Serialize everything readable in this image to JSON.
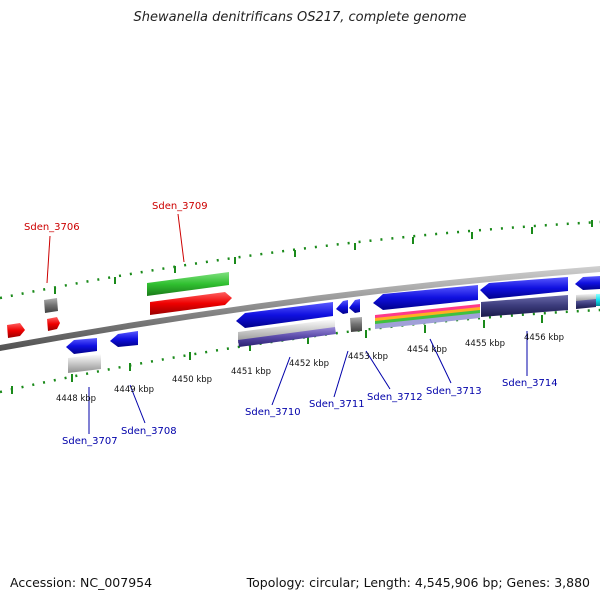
{
  "title": "Shewanella denitrificans OS217, complete genome",
  "footer": {
    "accession": "Accession: NC_007954",
    "summary": "Topology: circular; Length: 4,545,906 bp; Genes: 3,880"
  },
  "colors": {
    "forward_label": "#cc0000",
    "reverse_label": "#0000aa",
    "backbone": "#8a8a8a",
    "tick": "#1a8a1a",
    "blue_gene": "#1010e0",
    "red_gene": "#ee0000",
    "green_gene": "#30c030",
    "gray_gene": "#707070",
    "cyan_gene": "#10e0f0"
  },
  "kbp_labels": [
    "4448 kbp",
    "4449 kbp",
    "4450 kbp",
    "4451 kbp",
    "4452 kbp",
    "4453 kbp",
    "4454 kbp",
    "4455 kbp",
    "4456 kbp"
  ],
  "gene_labels": {
    "forward": [
      "Sden_3706",
      "Sden_3709"
    ],
    "reverse": [
      "Sden_3707",
      "Sden_3708",
      "Sden_3710",
      "Sden_3711",
      "Sden_3712",
      "Sden_3713",
      "Sden_3714"
    ]
  }
}
